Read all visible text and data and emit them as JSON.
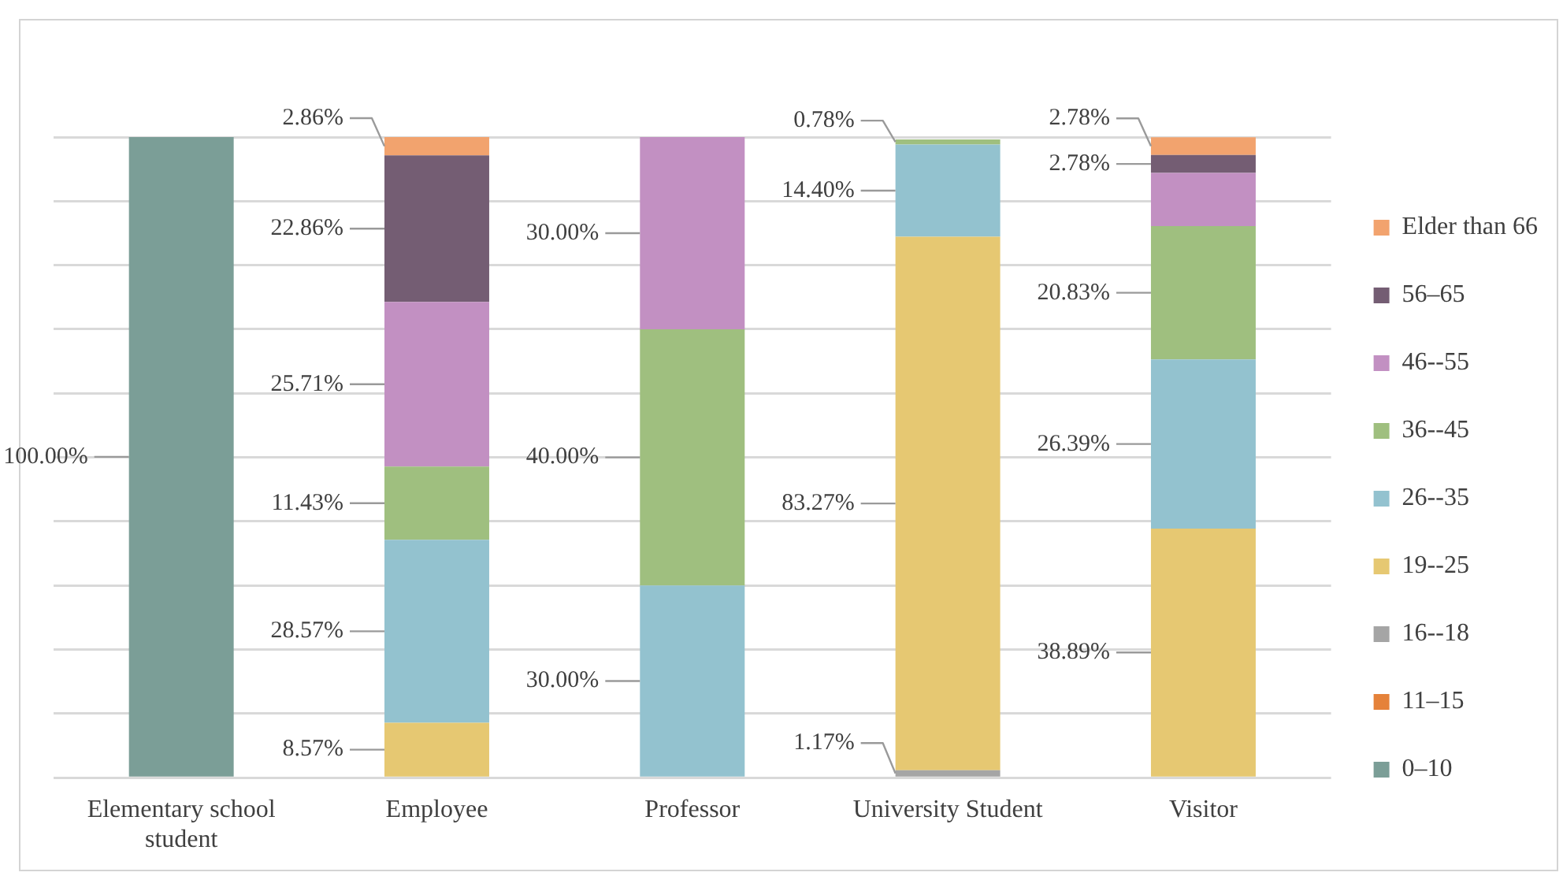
{
  "chart_data": {
    "type": "bar",
    "stacked": true,
    "categories": [
      "Elementary school student",
      "Employee",
      "Professor",
      "University Student",
      "Visitor"
    ],
    "series": [
      {
        "name": "0–10",
        "color": "#7b9e97",
        "values": [
          100.0,
          null,
          null,
          null,
          null
        ],
        "value_labels": [
          "100.00%",
          null,
          null,
          null,
          null
        ]
      },
      {
        "name": "11–15",
        "color": "#e5823a",
        "values": [
          null,
          null,
          null,
          null,
          null
        ],
        "value_labels": [
          null,
          null,
          null,
          null,
          null
        ]
      },
      {
        "name": "16--18",
        "color": "#a5a5a5",
        "values": [
          null,
          null,
          null,
          1.17,
          null
        ],
        "value_labels": [
          null,
          null,
          null,
          "1.17%",
          null
        ]
      },
      {
        "name": "19--25",
        "color": "#e6c872",
        "values": [
          null,
          8.57,
          null,
          83.27,
          38.89
        ],
        "value_labels": [
          null,
          "8.57%",
          null,
          "83.27%",
          "38.89%"
        ]
      },
      {
        "name": "26--35",
        "color": "#93c2cf",
        "values": [
          null,
          28.57,
          30.0,
          14.4,
          26.39
        ],
        "value_labels": [
          null,
          "28.57%",
          "30.00%",
          "14.40%",
          "26.39%"
        ]
      },
      {
        "name": "36--45",
        "color": "#9fbf7f",
        "values": [
          null,
          11.43,
          40.0,
          0.78,
          20.83
        ],
        "value_labels": [
          null,
          "11.43%",
          "40.00%",
          "0.78%",
          "20.83%"
        ]
      },
      {
        "name": "46--55",
        "color": "#c290c2",
        "values": [
          null,
          25.71,
          30.0,
          null,
          8.3
        ],
        "value_labels": [
          null,
          "25.71%",
          "30.00%",
          null,
          null
        ]
      },
      {
        "name": "56–65",
        "color": "#745d73",
        "values": [
          null,
          22.86,
          null,
          null,
          2.78
        ],
        "value_labels": [
          null,
          "22.86%",
          null,
          null,
          "2.78%"
        ]
      },
      {
        "name": "Elder than 66",
        "color": "#f2a36e",
        "values": [
          null,
          2.86,
          null,
          null,
          2.78
        ],
        "value_labels": [
          null,
          "2.86%",
          null,
          null,
          "2.78%"
        ]
      }
    ],
    "ylim": [
      0,
      100
    ],
    "yticks": [
      {
        "value": 0,
        "label": null
      },
      {
        "value": 10,
        "label": null
      },
      {
        "value": 20,
        "label": null
      },
      {
        "value": 30,
        "label": null
      },
      {
        "value": 40,
        "label": null
      },
      {
        "value": 50,
        "label": null
      },
      {
        "value": 60,
        "label": null
      },
      {
        "value": 70,
        "label": null
      },
      {
        "value": 80,
        "label": null
      },
      {
        "value": 90,
        "label": null
      },
      {
        "value": 100,
        "label": null
      }
    ],
    "grid": "y",
    "legend": "right",
    "tick_labels": "x"
  }
}
